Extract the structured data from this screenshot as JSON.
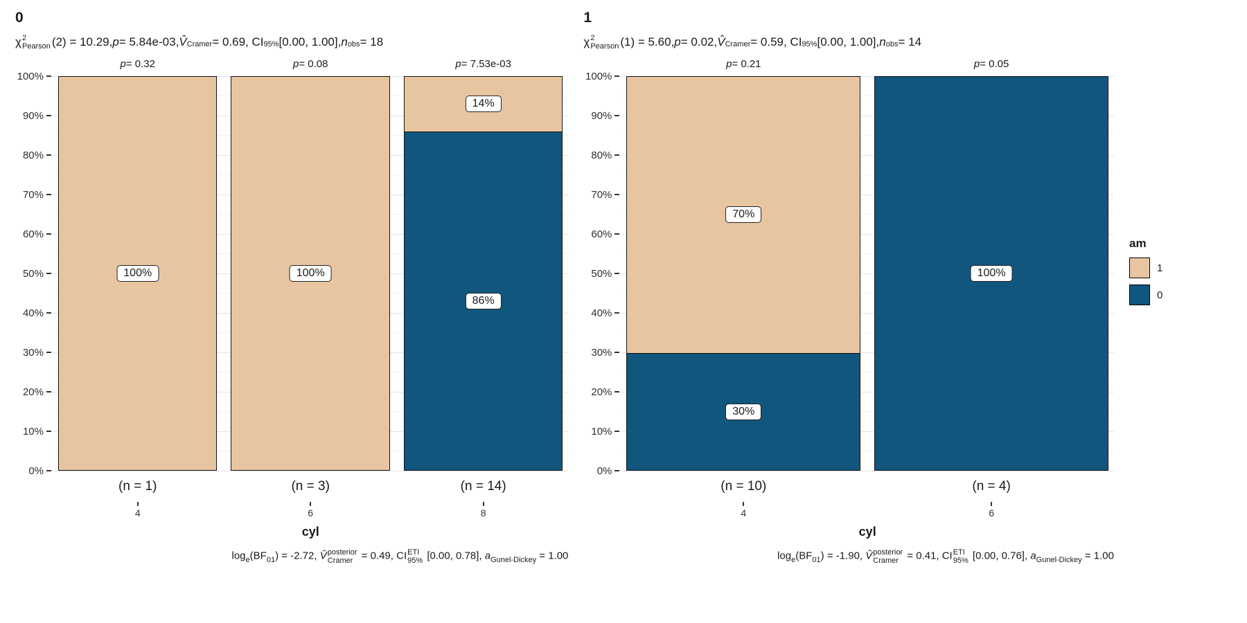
{
  "figure": {
    "background": "#ffffff",
    "series_colors": {
      "1": "#E8C5A1",
      "0": "#11567E"
    },
    "grid_colors": {
      "major": "#e3e3e3",
      "minor": "#f1f1f1"
    },
    "y_ticks": [
      "0%",
      "10%",
      "20%",
      "30%",
      "40%",
      "50%",
      "60%",
      "70%",
      "80%",
      "90%",
      "100%"
    ],
    "legend": {
      "title": "am",
      "items": [
        {
          "label": "1",
          "color": "#E8C5A1"
        },
        {
          "label": "0",
          "color": "#11567E"
        }
      ]
    }
  },
  "panels": [
    {
      "facet_title": "0",
      "xlabel": "cyl",
      "subtitle_tokens": [
        {
          "t": "n",
          "v": "χ"
        },
        {
          "t": "supsub",
          "sup": "2",
          "sub": "Pearson"
        },
        {
          "t": "n",
          "v": "(2) = 10.29, "
        },
        {
          "t": "i",
          "v": "p"
        },
        {
          "t": "n",
          "v": " = 5.84e-03, "
        },
        {
          "t": "i",
          "v": "V̂"
        },
        {
          "t": "sub",
          "v": "Cramer"
        },
        {
          "t": "n",
          "v": " = 0.69, CI"
        },
        {
          "t": "sub",
          "v": "95%"
        },
        {
          "t": "n",
          "v": " [0.00, 1.00], "
        },
        {
          "t": "i",
          "v": "n"
        },
        {
          "t": "sub",
          "v": "obs"
        },
        {
          "t": "n",
          "v": " = 18"
        }
      ],
      "caption_tokens": [
        {
          "t": "n",
          "v": "log"
        },
        {
          "t": "sub",
          "v": "e"
        },
        {
          "t": "n",
          "v": "(BF"
        },
        {
          "t": "sub",
          "v": "01"
        },
        {
          "t": "n",
          "v": ") = -2.72, "
        },
        {
          "t": "i",
          "v": "V̂"
        },
        {
          "t": "supsub",
          "sup": "posterior",
          "sub": "Cramer"
        },
        {
          "t": "n",
          "v": " = 0.49, CI"
        },
        {
          "t": "supsub",
          "sup": "ETI",
          "sub": "95%"
        },
        {
          "t": "n",
          "v": " [0.00, 0.78], "
        },
        {
          "t": "i",
          "v": "a"
        },
        {
          "t": "sub",
          "v": "Gunel-Dickey"
        },
        {
          "t": "n",
          "v": " = 1.00"
        }
      ],
      "bars": [
        {
          "category": "4",
          "n_label": "(n = 1)",
          "p_tokens": [
            {
              "t": "i",
              "v": "p"
            },
            {
              "t": "n",
              "v": " = 0.32"
            }
          ],
          "segments": [
            {
              "series": "0",
              "value": 0
            },
            {
              "series": "1",
              "value": 100,
              "label": "100%"
            }
          ]
        },
        {
          "category": "6",
          "n_label": "(n = 3)",
          "p_tokens": [
            {
              "t": "i",
              "v": "p"
            },
            {
              "t": "n",
              "v": " = 0.08"
            }
          ],
          "segments": [
            {
              "series": "0",
              "value": 0
            },
            {
              "series": "1",
              "value": 100,
              "label": "100%"
            }
          ]
        },
        {
          "category": "8",
          "n_label": "(n = 14)",
          "p_tokens": [
            {
              "t": "i",
              "v": "p"
            },
            {
              "t": "n",
              "v": " = 7.53e-03"
            }
          ],
          "segments": [
            {
              "series": "0",
              "value": 86,
              "label": "86%"
            },
            {
              "series": "1",
              "value": 14,
              "label": "14%"
            }
          ]
        }
      ]
    },
    {
      "facet_title": "1",
      "xlabel": "cyl",
      "subtitle_tokens": [
        {
          "t": "n",
          "v": "χ"
        },
        {
          "t": "supsub",
          "sup": "2",
          "sub": "Pearson"
        },
        {
          "t": "n",
          "v": "(1) = 5.60, "
        },
        {
          "t": "i",
          "v": "p"
        },
        {
          "t": "n",
          "v": " = 0.02, "
        },
        {
          "t": "i",
          "v": "V̂"
        },
        {
          "t": "sub",
          "v": "Cramer"
        },
        {
          "t": "n",
          "v": " = 0.59, CI"
        },
        {
          "t": "sub",
          "v": "95%"
        },
        {
          "t": "n",
          "v": " [0.00, 1.00], "
        },
        {
          "t": "i",
          "v": "n"
        },
        {
          "t": "sub",
          "v": "obs"
        },
        {
          "t": "n",
          "v": " = 14"
        }
      ],
      "caption_tokens": [
        {
          "t": "n",
          "v": "log"
        },
        {
          "t": "sub",
          "v": "e"
        },
        {
          "t": "n",
          "v": "(BF"
        },
        {
          "t": "sub",
          "v": "01"
        },
        {
          "t": "n",
          "v": ") = -1.90, "
        },
        {
          "t": "i",
          "v": "V̂"
        },
        {
          "t": "supsub",
          "sup": "posterior",
          "sub": "Cramer"
        },
        {
          "t": "n",
          "v": " = 0.41, CI"
        },
        {
          "t": "supsub",
          "sup": "ETI",
          "sub": "95%"
        },
        {
          "t": "n",
          "v": " [0.00, 0.76], "
        },
        {
          "t": "i",
          "v": "a"
        },
        {
          "t": "sub",
          "v": "Gunel-Dickey"
        },
        {
          "t": "n",
          "v": " = 1.00"
        }
      ],
      "bars": [
        {
          "category": "4",
          "n_label": "(n = 10)",
          "p_tokens": [
            {
              "t": "i",
              "v": "p"
            },
            {
              "t": "n",
              "v": " = 0.21"
            }
          ],
          "segments": [
            {
              "series": "0",
              "value": 30,
              "label": "30%"
            },
            {
              "series": "1",
              "value": 70,
              "label": "70%"
            }
          ]
        },
        {
          "category": "6",
          "n_label": "(n = 4)",
          "p_tokens": [
            {
              "t": "i",
              "v": "p"
            },
            {
              "t": "n",
              "v": " = 0.05"
            }
          ],
          "segments": [
            {
              "series": "0",
              "value": 100,
              "label": "100%"
            },
            {
              "series": "1",
              "value": 0
            }
          ]
        }
      ]
    }
  ],
  "chart_data": [
    {
      "type": "bar",
      "stacked": true,
      "percent": true,
      "facet_title": "0",
      "subtitle": "χ²_Pearson(2) = 10.29, p = 5.84e-03, V̂_Cramer = 0.69, CI_95% [0.00, 1.00], n_obs = 18",
      "caption": "log_e(BF_01) = -2.72, V̂_Cramer^posterior = 0.49, CI_95%^ETI [0.00, 0.78], a_Gunel-Dickey = 1.00",
      "xlabel": "cyl",
      "ylabel": "",
      "ylim": [
        0,
        100
      ],
      "y_tick_labels": [
        "0%",
        "10%",
        "20%",
        "30%",
        "40%",
        "50%",
        "60%",
        "70%",
        "80%",
        "90%",
        "100%"
      ],
      "categories": [
        "4",
        "6",
        "8"
      ],
      "series": [
        {
          "name": "1",
          "color": "#E8C5A1",
          "values": [
            100,
            100,
            14
          ],
          "labels": [
            "100%",
            "100%",
            "14%"
          ]
        },
        {
          "name": "0",
          "color": "#11567E",
          "values": [
            0,
            0,
            86
          ],
          "labels": [
            "",
            "",
            "86%"
          ]
        }
      ],
      "p_values_per_bar": [
        "p = 0.32",
        "p = 0.08",
        "p = 7.53e-03"
      ],
      "n_per_bar": [
        "(n = 1)",
        "(n = 3)",
        "(n = 14)"
      ],
      "legend_title": "am",
      "grid": true,
      "legend_position": "right"
    },
    {
      "type": "bar",
      "stacked": true,
      "percent": true,
      "facet_title": "1",
      "subtitle": "χ²_Pearson(1) = 5.60, p = 0.02, V̂_Cramer = 0.59, CI_95% [0.00, 1.00], n_obs = 14",
      "caption": "log_e(BF_01) = -1.90, V̂_Cramer^posterior = 0.41, CI_95%^ETI [0.00, 0.76], a_Gunel-Dickey = 1.00",
      "xlabel": "cyl",
      "ylabel": "",
      "ylim": [
        0,
        100
      ],
      "y_tick_labels": [
        "0%",
        "10%",
        "20%",
        "30%",
        "40%",
        "50%",
        "60%",
        "70%",
        "80%",
        "90%",
        "100%"
      ],
      "categories": [
        "4",
        "6"
      ],
      "series": [
        {
          "name": "1",
          "color": "#E8C5A1",
          "values": [
            70,
            0
          ],
          "labels": [
            "70%",
            ""
          ]
        },
        {
          "name": "0",
          "color": "#11567E",
          "values": [
            30,
            100
          ],
          "labels": [
            "30%",
            "100%"
          ]
        }
      ],
      "p_values_per_bar": [
        "p = 0.21",
        "p = 0.05"
      ],
      "n_per_bar": [
        "(n = 10)",
        "(n = 4)"
      ],
      "legend_title": "am",
      "grid": true,
      "legend_position": "right"
    }
  ]
}
